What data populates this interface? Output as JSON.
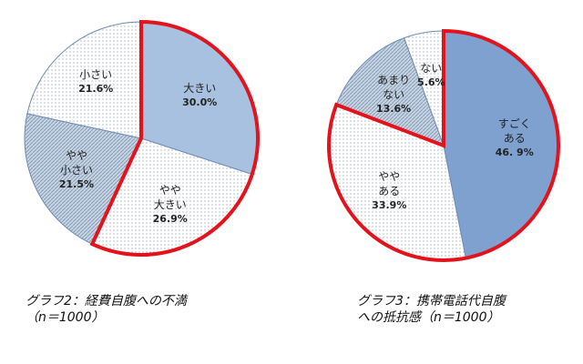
{
  "chart_data": [
    {
      "type": "pie",
      "title": "グラフ2：経費自腹への不満\n（n＝1000）",
      "categories": [
        "大きい",
        "やや\n大きい",
        "やや\n小さい",
        "小さい"
      ],
      "values": [
        30.0,
        26.9,
        21.5,
        21.6
      ],
      "value_labels": [
        "30.0%",
        "26.9%",
        "21.5%",
        "21.6%"
      ],
      "colors": [
        "#a9c1e0",
        "#ffffff",
        "#c5d3e3",
        "#ffffff"
      ],
      "styles": [
        "solid",
        "dots",
        "hatch",
        "dots"
      ],
      "highlighted": [
        true,
        true,
        false,
        false
      ],
      "highlight_color": "#e3121b"
    },
    {
      "type": "pie",
      "title": "グラフ3：携帯電話代自腹\nへの抵抗感（n＝1000）",
      "categories": [
        "すごく\nある",
        "やや\nある",
        "あまり\nない",
        "ない"
      ],
      "values": [
        46.9,
        33.9,
        13.6,
        5.6
      ],
      "value_labels": [
        "46. 9%",
        "33.9%",
        "13.6%",
        "5.6%"
      ],
      "colors": [
        "#7ea1d0",
        "#ffffff",
        "#c5d3e3",
        "#ffffff"
      ],
      "styles": [
        "solid",
        "dots",
        "hatch",
        "dots"
      ],
      "highlighted": [
        true,
        true,
        false,
        false
      ],
      "highlight_color": "#e3121b"
    }
  ]
}
